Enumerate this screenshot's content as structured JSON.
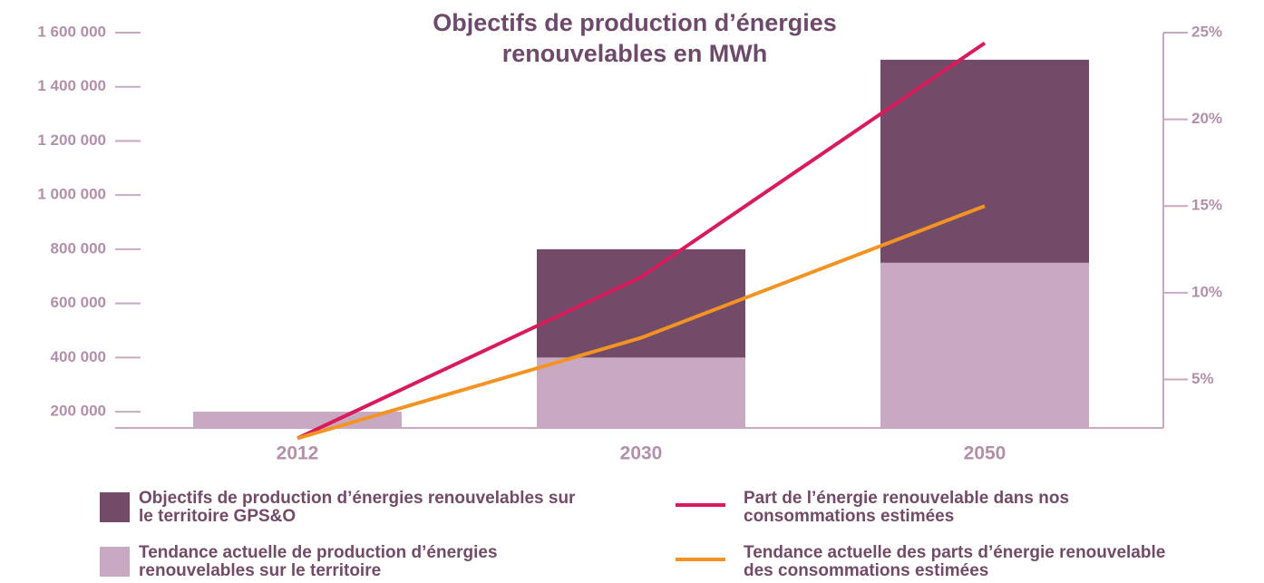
{
  "chart_data": {
    "type": "bar",
    "stacked": true,
    "title": "Objectifs de production d’énergies renouvelables en MWh",
    "categories": [
      "2012",
      "2030",
      "2050"
    ],
    "series": [
      {
        "name": "Objectifs de production d’énergies renouvelables sur le territoire GPS&O",
        "type": "bar",
        "color": "#714b67",
        "values": [
          0,
          400000,
          750000
        ]
      },
      {
        "name": "Tendance actuelle de production d’énergies renouvelables sur le territoire",
        "type": "bar",
        "color": "#c9a9c1",
        "values": [
          200000,
          400000,
          750000
        ]
      },
      {
        "name": "Part de l’énergie renouvelable dans nos consommations estimées",
        "type": "line",
        "axis": "y2",
        "color": "#d81b5b",
        "values": [
          1.6,
          10.9,
          24.4
        ]
      },
      {
        "name": "Tendance actuelle des parts d’énergie renouvelable des consommations estimées",
        "type": "line",
        "axis": "y2",
        "color": "#f39323",
        "values": [
          1.6,
          7.4,
          15.0
        ]
      }
    ],
    "ylim": [
      140000,
      1600000
    ],
    "yticks": [
      {
        "value": 200000,
        "label": "200 000"
      },
      {
        "value": 400000,
        "label": "400 000"
      },
      {
        "value": 600000,
        "label": "600 000"
      },
      {
        "value": 800000,
        "label": "800 000"
      },
      {
        "value": 1000000,
        "label": "1 000 000"
      },
      {
        "value": 1200000,
        "label": "1 200 000"
      },
      {
        "value": 1400000,
        "label": "1 400 000"
      },
      {
        "value": 1600000,
        "label": "1 600 000"
      }
    ],
    "y2lim": [
      2.2,
      25
    ],
    "y2ticks": [
      {
        "value": 5,
        "label": "5%"
      },
      {
        "value": 10,
        "label": "10%"
      },
      {
        "value": 15,
        "label": "15%"
      },
      {
        "value": 20,
        "label": "20%"
      },
      {
        "value": 25,
        "label": "25%"
      }
    ],
    "grid": false,
    "legend": "bottom"
  }
}
